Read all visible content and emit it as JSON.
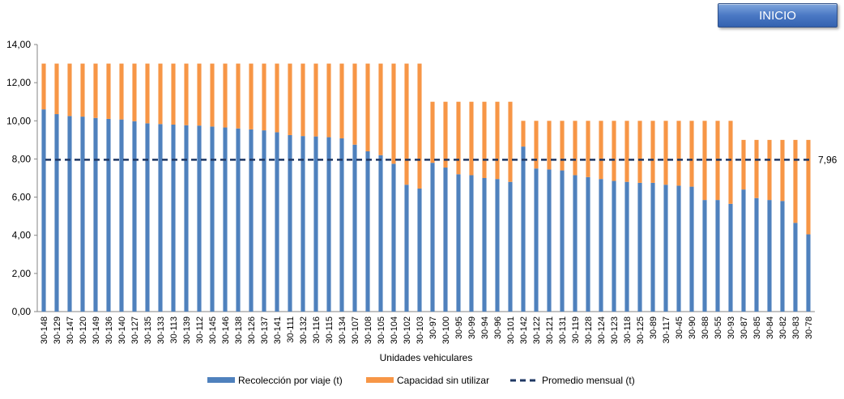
{
  "button": {
    "label": "INICIO"
  },
  "chart_data": {
    "type": "bar",
    "stacked": true,
    "xlabel": "Unidades vehiculares",
    "ylim": [
      0,
      14
    ],
    "yticks": [
      "0,00",
      "2,00",
      "4,00",
      "6,00",
      "8,00",
      "10,00",
      "12,00",
      "14,00"
    ],
    "legend_position": "bottom",
    "categories": [
      "30-148",
      "30-129",
      "30-147",
      "30-120",
      "30-149",
      "30-136",
      "30-140",
      "30-127",
      "30-135",
      "30-133",
      "30-113",
      "30-139",
      "30-112",
      "30-145",
      "30-146",
      "30-138",
      "30-126",
      "30-137",
      "30-141",
      "30-111",
      "30-132",
      "30-116",
      "30-115",
      "30-134",
      "30-107",
      "30-108",
      "30-105",
      "30-104",
      "30-102",
      "30-103",
      "30-97",
      "30-100",
      "30-95",
      "30-99",
      "30-94",
      "30-96",
      "30-101",
      "30-142",
      "30-122",
      "30-121",
      "30-131",
      "30-119",
      "30-128",
      "30-124",
      "30-123",
      "30-118",
      "30-125",
      "30-89",
      "30-117",
      "30-45",
      "30-90",
      "30-88",
      "30-55",
      "30-93",
      "30-87",
      "30-85",
      "30-84",
      "30-82",
      "30-83",
      "30-78"
    ],
    "series": [
      {
        "name": "Recolección por viaje (t)",
        "color": "#4f81bd",
        "values": [
          10.6,
          10.35,
          10.25,
          10.22,
          10.15,
          10.1,
          10.07,
          9.98,
          9.87,
          9.83,
          9.8,
          9.77,
          9.75,
          9.7,
          9.65,
          9.6,
          9.55,
          9.5,
          9.4,
          9.25,
          9.2,
          9.18,
          9.14,
          9.08,
          8.75,
          8.4,
          8.2,
          7.75,
          6.65,
          6.45,
          7.8,
          7.55,
          7.2,
          7.15,
          7.0,
          6.95,
          6.8,
          8.65,
          7.5,
          7.45,
          7.4,
          7.15,
          7.05,
          6.95,
          6.85,
          6.8,
          6.75,
          6.75,
          6.65,
          6.6,
          6.55,
          5.85,
          5.85,
          5.65,
          6.4,
          5.95,
          5.85,
          5.8,
          4.65,
          4.05
        ]
      },
      {
        "name": "Capacidad sin utilizar",
        "color": "#f79646",
        "values": [
          2.4,
          2.65,
          2.75,
          2.78,
          2.85,
          2.9,
          2.93,
          3.02,
          3.13,
          3.17,
          3.2,
          3.23,
          3.25,
          3.3,
          3.35,
          3.4,
          3.45,
          3.5,
          3.6,
          3.75,
          3.8,
          3.82,
          3.86,
          3.92,
          4.25,
          4.6,
          4.8,
          5.25,
          6.35,
          6.55,
          3.2,
          3.45,
          3.8,
          3.85,
          4.0,
          4.05,
          4.2,
          1.35,
          2.5,
          2.55,
          2.6,
          2.85,
          2.95,
          3.05,
          3.15,
          3.2,
          3.25,
          3.25,
          3.35,
          3.4,
          3.45,
          4.15,
          4.15,
          4.35,
          2.6,
          3.05,
          3.15,
          3.2,
          4.35,
          4.95
        ]
      }
    ],
    "average": {
      "name": "Promedio mensual (t)",
      "value": 7.96,
      "label": "7,96",
      "color": "#1f3864"
    }
  }
}
